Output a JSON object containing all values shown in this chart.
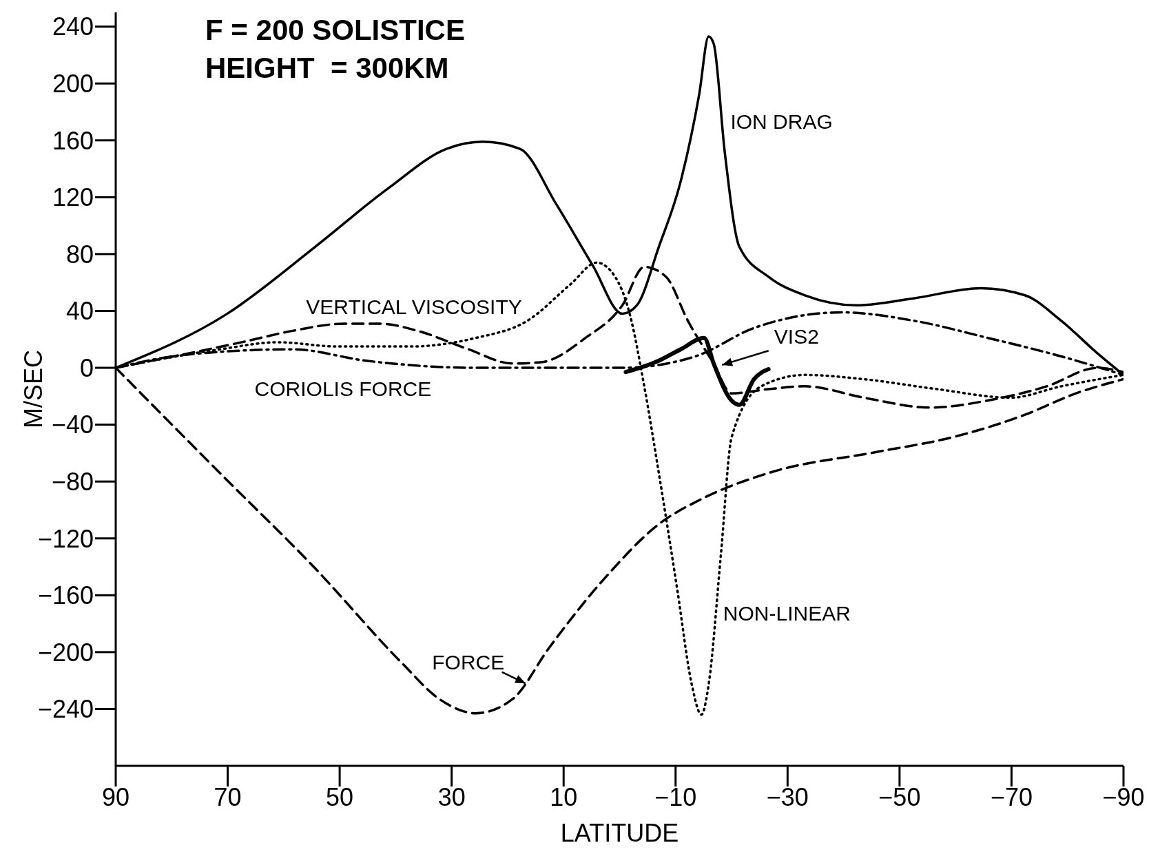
{
  "chart_data": {
    "type": "line",
    "title": "F = 200 SOLISTICE",
    "subtitle": "HEIGHT  = 300KM",
    "xlabel": "LATITUDE",
    "ylabel": "M/SEC",
    "xlim": [
      90,
      -90
    ],
    "xticks": [
      90,
      70,
      50,
      30,
      10,
      -10,
      -30,
      -50,
      -70,
      -90
    ],
    "ylim": [
      -280,
      250
    ],
    "yticks": [
      -240,
      -200,
      -160,
      -120,
      -80,
      -40,
      0,
      40,
      80,
      120,
      160,
      200,
      240
    ],
    "marker": "none",
    "series": [
      {
        "name": "ION DRAG",
        "color": "#000000",
        "line_style": "solid",
        "x": [
          90,
          70.1,
          54.4,
          41.4,
          30.9,
          24.4,
          17.8,
          11.3,
          4.8,
          -0.5,
          -3.1,
          -7,
          -10.9,
          -14.2,
          -15.9,
          -16.8,
          -18.8,
          -21.4,
          -26.6,
          -33.1,
          -42.3,
          -52.7,
          -64.5,
          -72.4,
          -78.9,
          -85.4,
          -90
        ],
        "values": [
          0,
          38,
          85,
          126,
          154,
          159,
          154,
          115,
          72,
          38,
          44,
          85,
          131,
          192,
          233,
          228,
          151,
          85,
          64,
          51,
          44,
          49,
          56,
          51,
          33,
          10,
          -5
        ]
      },
      {
        "name": "FORCE",
        "color": "#000000",
        "line_style": "dashed",
        "x": [
          90,
          71.4,
          54.4,
          38.8,
          32.2,
          25.7,
          19.1,
          12.6,
          2.2,
          -7,
          -14.8,
          -26.6,
          -46.2,
          -59.3,
          -72.4,
          -81.5,
          -90
        ],
        "values": [
          0,
          -74,
          -141,
          -208,
          -233,
          -243,
          -233,
          -197,
          -146,
          -110,
          -92,
          -74,
          -59,
          -49,
          -33,
          -18,
          -8
        ]
      },
      {
        "name": "VERTICAL VISCOSITY",
        "color": "#000000",
        "line_style": "dashed",
        "x": [
          90,
          67.5,
          58.4,
          49.2,
          42.7,
          36.1,
          27,
          19.1,
          13.9,
          6.1,
          -0.5,
          -4.4,
          -8.3,
          -12.2,
          -16.8,
          -20,
          -26.6,
          -33.1,
          -43.6,
          -55.4,
          -65.8,
          -76.3,
          -85.4,
          -90
        ],
        "values": [
          0,
          18,
          26,
          31,
          31,
          26,
          13,
          3,
          4,
          21,
          44,
          71,
          64,
          33,
          3,
          -18,
          -15,
          -13,
          -21,
          -28,
          -23,
          -13,
          0,
          -3
        ]
      },
      {
        "name": "NON-LINEAR",
        "color": "#000000",
        "line_style": "dotted",
        "x": [
          90,
          71.4,
          61,
          50.5,
          37.4,
          25.7,
          16.5,
          8.7,
          4.1,
          0.8,
          -1.8,
          -4.4,
          -7,
          -10.3,
          -12.9,
          -14.6,
          -15.9,
          -18.1,
          -20,
          -25.3,
          -33.1,
          -43.6,
          -56.7,
          -69.8,
          -78.9,
          -90
        ],
        "values": [
          0,
          13,
          18,
          15,
          15,
          21,
          33,
          59,
          74,
          64,
          38,
          -13,
          -74,
          -156,
          -223,
          -244,
          -223,
          -131,
          -49,
          -13,
          -5,
          -8,
          -15,
          -21,
          -13,
          -5
        ]
      },
      {
        "name": "CORIOLIS FORCE",
        "color": "#000000",
        "line_style": "dashdot",
        "x": [
          90,
          78,
          58.4,
          45.3,
          25.7,
          -0.5,
          -13.5,
          -24,
          -39.7,
          -52.7,
          -65.8,
          -78.9,
          -90
        ],
        "values": [
          0,
          9,
          13,
          5,
          0,
          0,
          8,
          28,
          39,
          33,
          21,
          8,
          -5
        ]
      },
      {
        "name": "VIS2",
        "color": "#000000",
        "line_style": "solid",
        "x": [
          -1.1,
          -7,
          -10.9,
          -15.1,
          -16.8,
          -20,
          -21.4,
          -24,
          -26.6
        ],
        "values": [
          -3,
          5,
          13,
          21,
          3,
          -23,
          -26,
          -8,
          -1
        ]
      }
    ]
  }
}
